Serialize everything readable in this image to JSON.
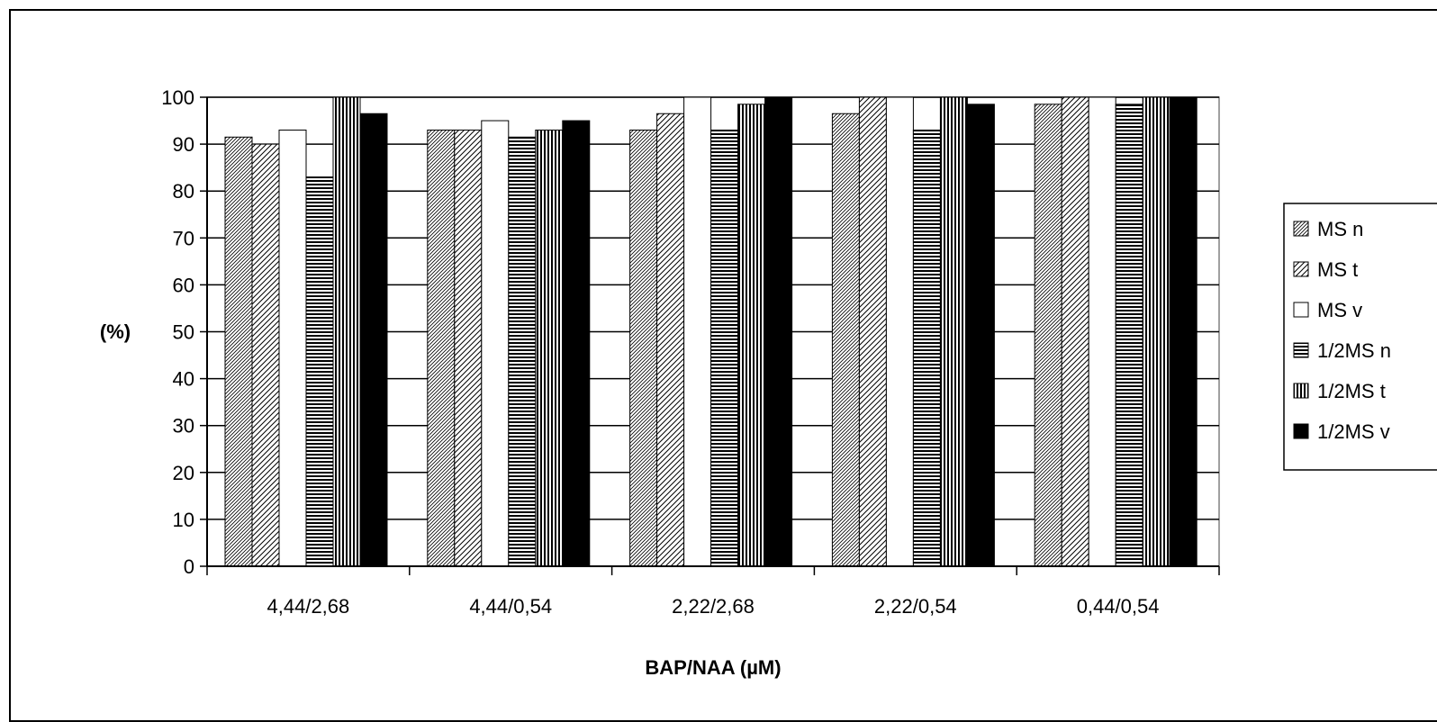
{
  "chart_data": {
    "type": "bar",
    "title": "",
    "xlabel": "BAP/NAA (µM)",
    "ylabel": "(%)",
    "ylim": [
      0,
      100
    ],
    "yticks": [
      "0",
      "10",
      "20",
      "30",
      "40",
      "50",
      "60",
      "70",
      "80",
      "90",
      "100"
    ],
    "grid": "horizontal",
    "legend_position": "right",
    "categories": [
      "4,44/2,68",
      "4,44/0,54",
      "2,22/2,68",
      "2,22/0,54",
      "0,44/0,54"
    ],
    "series": [
      {
        "name": "MS n",
        "pattern": "diag-dense",
        "values": [
          91.5,
          93,
          93,
          96.5,
          98.5
        ]
      },
      {
        "name": "MS t",
        "pattern": "diag-wide",
        "values": [
          90,
          93,
          96.5,
          100,
          100
        ]
      },
      {
        "name": "MS v",
        "pattern": "white",
        "values": [
          93,
          95,
          100,
          100,
          100
        ]
      },
      {
        "name": "1/2MS n",
        "pattern": "horizontal",
        "values": [
          83,
          91.5,
          93,
          93,
          98.5
        ]
      },
      {
        "name": "1/2MS t",
        "pattern": "vertical",
        "values": [
          100,
          93,
          98.5,
          100,
          100
        ]
      },
      {
        "name": "1/2MS v",
        "pattern": "black",
        "values": [
          96.5,
          95,
          100,
          98.5,
          100
        ]
      }
    ]
  }
}
